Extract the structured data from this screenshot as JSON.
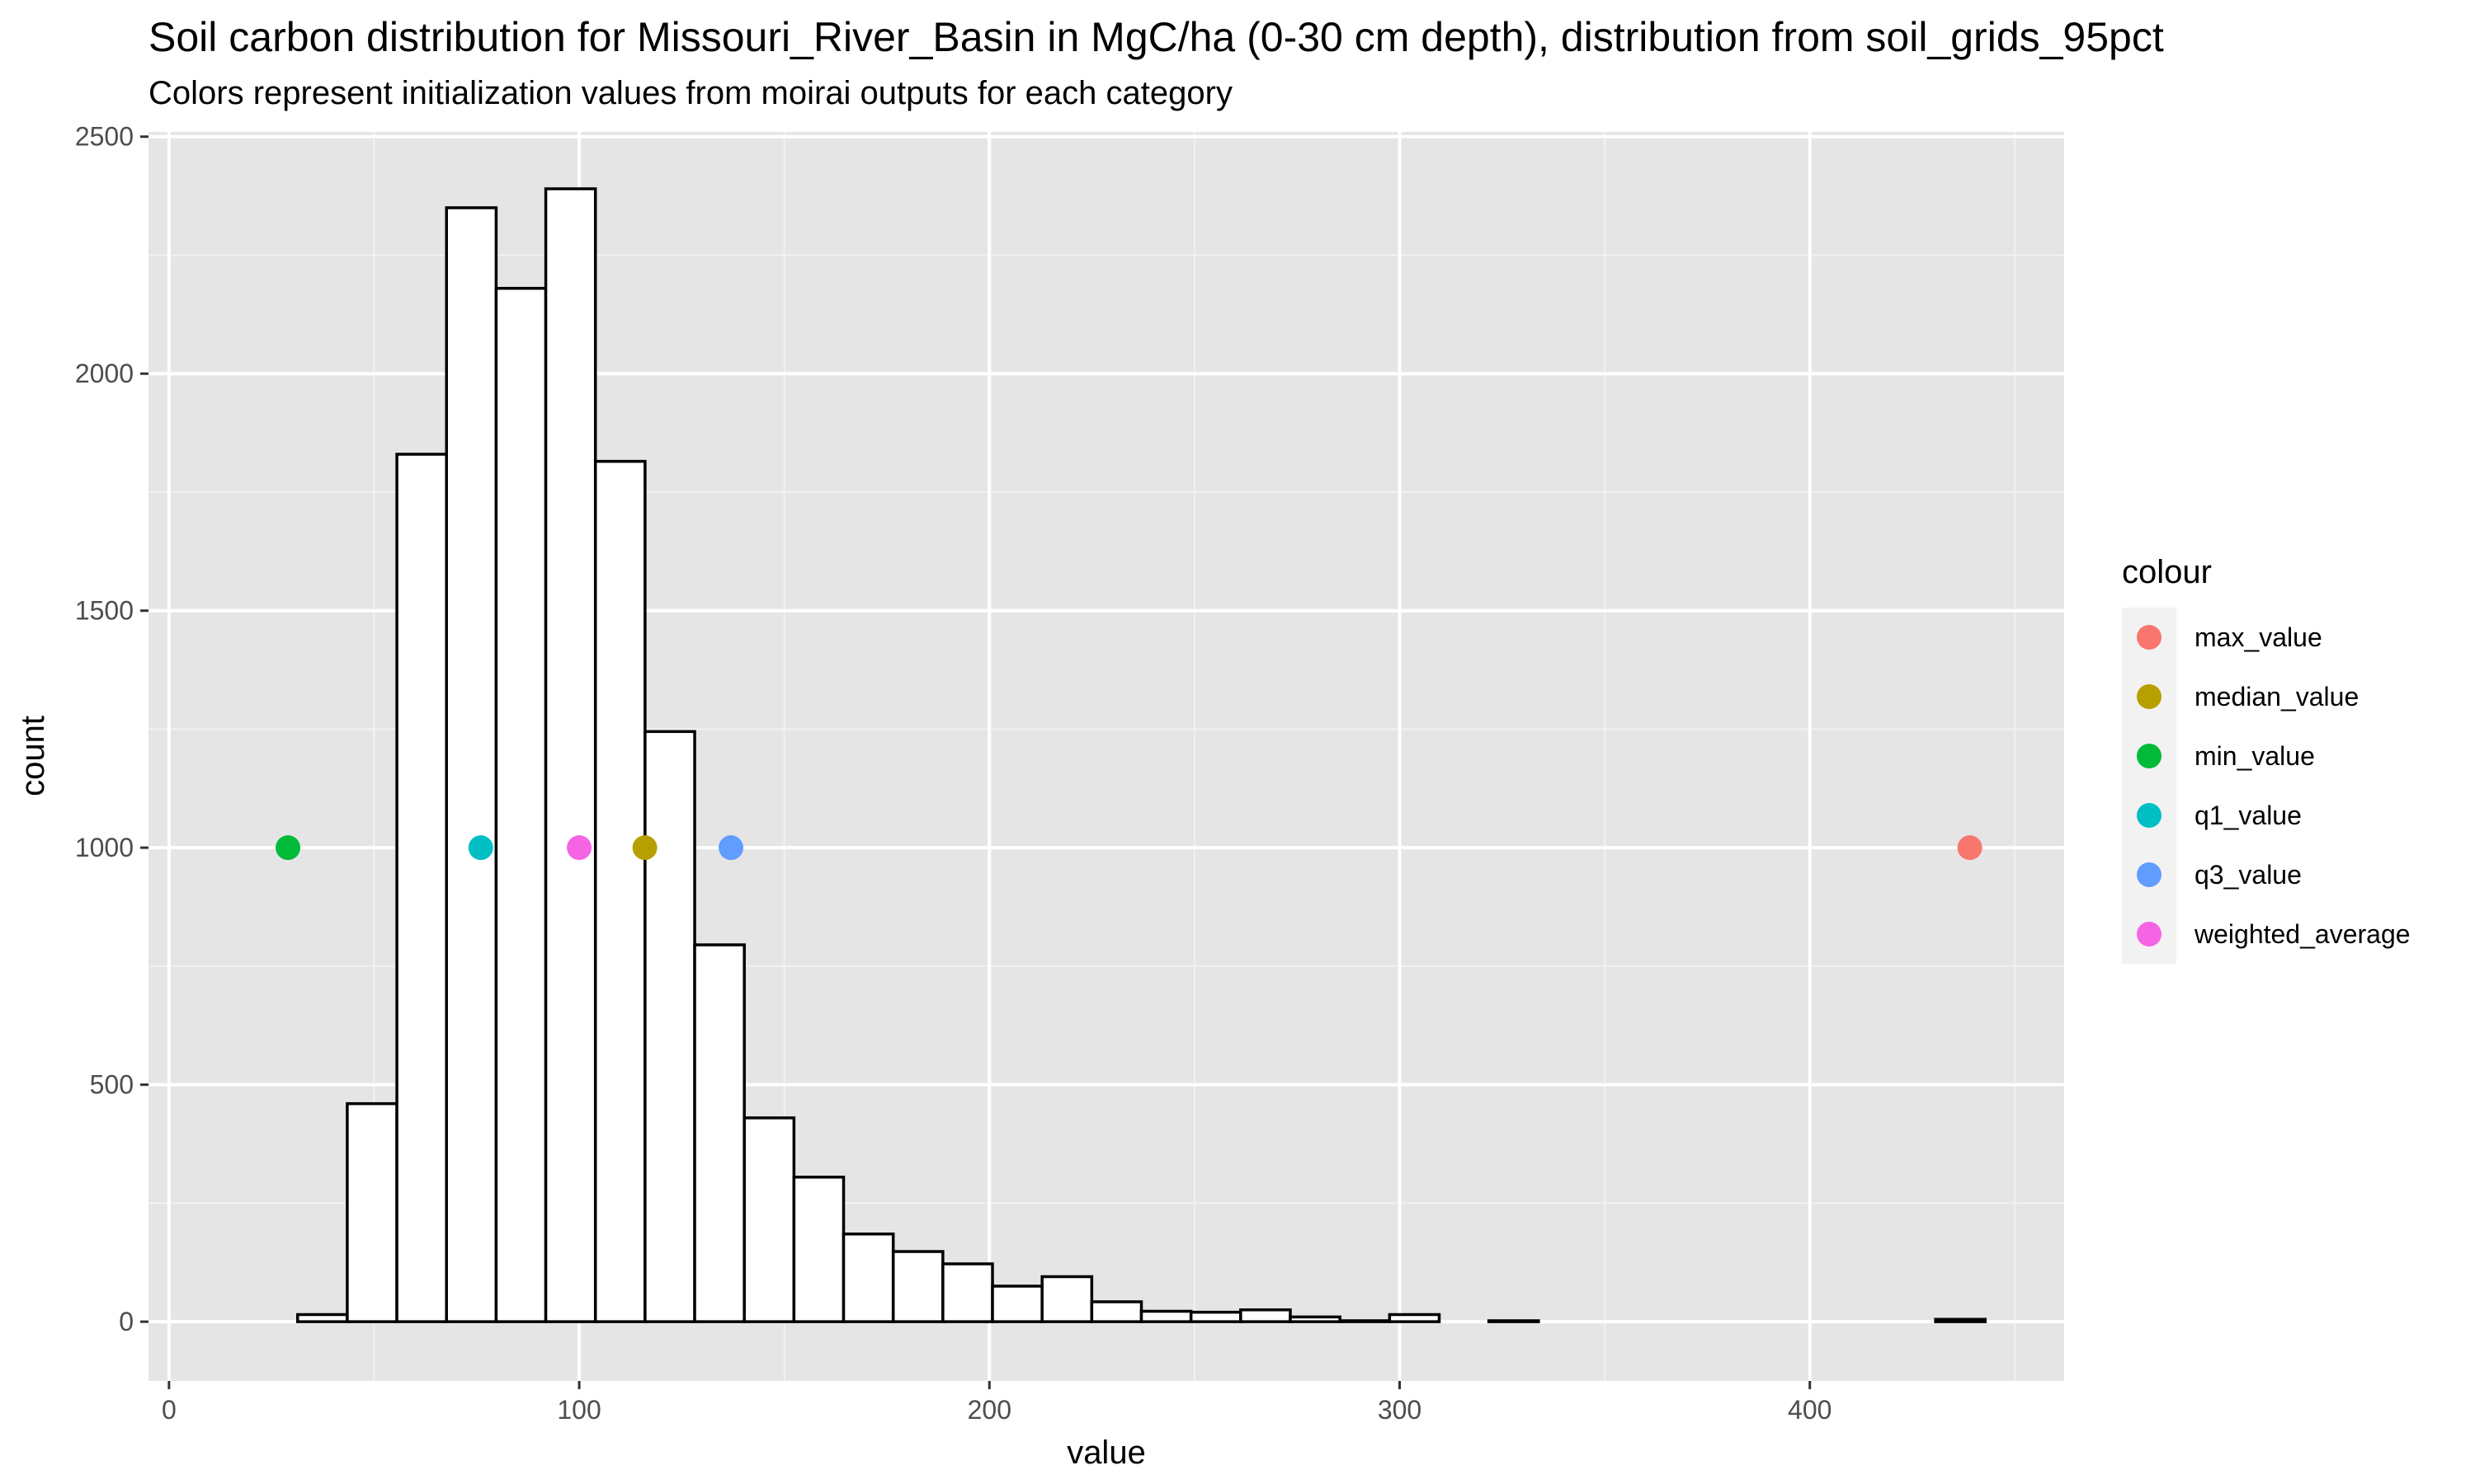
{
  "chart_data": {
    "type": "histogram",
    "title": "Soil carbon distribution for Missouri_River_Basin in MgC/ha (0-30 cm depth), distribution from soil_grids_95pct",
    "subtitle": "Colors represent initialization values from moirai outputs for each category",
    "xlabel": "value",
    "ylabel": "count",
    "xlim": [
      -5,
      462
    ],
    "ylim": [
      -125,
      2510
    ],
    "x_ticks": [
      0,
      100,
      200,
      300,
      400
    ],
    "y_ticks": [
      0,
      500,
      1000,
      1500,
      2000,
      2500
    ],
    "x_minor": [
      50,
      150,
      250,
      350,
      450
    ],
    "y_minor": [
      250,
      750,
      1250,
      1750,
      2250
    ],
    "grid": true,
    "panel_background": "#e5e5e5",
    "bins": {
      "first_center": 25.3,
      "width": 12.1,
      "counts": [
        0,
        15,
        460,
        1830,
        2350,
        2180,
        2390,
        1815,
        1245,
        795,
        430,
        305,
        185,
        148,
        122,
        75,
        95,
        42,
        22,
        20,
        25,
        10,
        2,
        15,
        0,
        2,
        0,
        0,
        0,
        0,
        0,
        0,
        0,
        0,
        5
      ]
    },
    "points": [
      {
        "name": "max_value",
        "x": 439,
        "y": 1000,
        "color": "#F8766D"
      },
      {
        "name": "median_value",
        "x": 116,
        "y": 1000,
        "color": "#B79F00"
      },
      {
        "name": "min_value",
        "x": 29,
        "y": 1000,
        "color": "#00BA38"
      },
      {
        "name": "q1_value",
        "x": 76,
        "y": 1000,
        "color": "#00BFC4"
      },
      {
        "name": "q3_value",
        "x": 137,
        "y": 1000,
        "color": "#619CFF"
      },
      {
        "name": "weighted_average",
        "x": 100,
        "y": 1000,
        "color": "#F564E3"
      }
    ],
    "legend": {
      "title": "colour",
      "placement": "right",
      "items": [
        "max_value",
        "median_value",
        "min_value",
        "q1_value",
        "q3_value",
        "weighted_average"
      ]
    }
  }
}
